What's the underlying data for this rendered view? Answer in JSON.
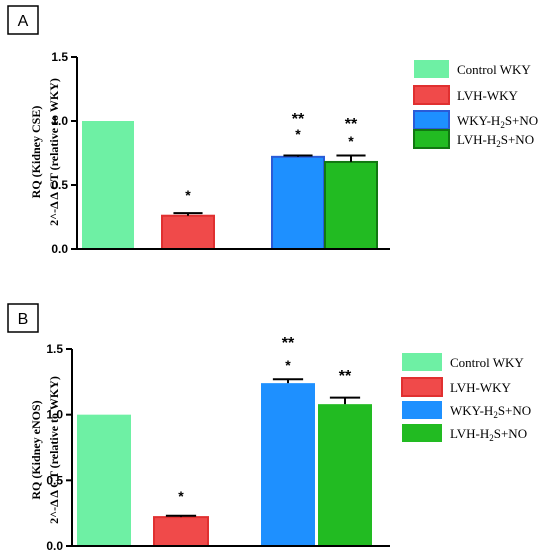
{
  "chart_data": [
    {
      "panel": "A",
      "type": "bar",
      "ylabel_line1": "RQ (Kidney CSE)",
      "ylabel_line2": "2^-Δ Δ CT (relative to WKY)",
      "ylim": [
        0,
        1.5
      ],
      "yticks": [
        "0.0",
        "0.5",
        "1.0",
        "1.5"
      ],
      "ytick_values": [
        0,
        0.5,
        1.0,
        1.5
      ],
      "legend_position": "right",
      "bars": [
        {
          "name": "Control WKY",
          "value": 1.0,
          "error": 0,
          "fill": "#6ef0a4",
          "stroke": "#6ef0a4",
          "sig_top": "",
          "sig_bottom": ""
        },
        {
          "name": "LVH-WKY",
          "value": 0.26,
          "error": 0.02,
          "fill": "#f04a4a",
          "stroke": "#e03030",
          "sig_top": "",
          "sig_bottom": "*"
        },
        {
          "name": "WKY-H2S+NO",
          "value": 0.72,
          "error": 0.01,
          "fill": "#1e90ff",
          "stroke": "#2a5bd7",
          "sig_top": "**",
          "sig_bottom": "*"
        },
        {
          "name": "LVH-H2S+NO",
          "value": 0.68,
          "error": 0.05,
          "fill": "#22bb22",
          "stroke": "#117711",
          "sig_top": "**",
          "sig_bottom": "*"
        }
      ],
      "legend": [
        {
          "label": "Control WKY",
          "sub": "",
          "label_rest": ""
        },
        {
          "label": "LVH-WKY",
          "sub": "",
          "label_rest": ""
        },
        {
          "label": "WKY-H",
          "sub": "2",
          "label_rest": "S+NO"
        },
        {
          "label": "LVH-H",
          "sub": "2",
          "label_rest": "S+NO"
        }
      ]
    },
    {
      "panel": "B",
      "type": "bar",
      "ylabel_line1": "RQ (Kidney eNOS)",
      "ylabel_line2": "2^-Δ Δ CT (relative to WKY)",
      "ylim": [
        0,
        1.5
      ],
      "yticks": [
        "0.0",
        "0.5",
        "1.0",
        "1.5"
      ],
      "ytick_values": [
        0,
        0.5,
        1.0,
        1.5
      ],
      "legend_position": "right",
      "bars": [
        {
          "name": "Control WKY",
          "value": 1.0,
          "error": 0,
          "fill": "#6ef0a4",
          "stroke": "#6ef0a4",
          "sig_top": "",
          "sig_bottom": ""
        },
        {
          "name": "LVH-WKY",
          "value": 0.22,
          "error": 0.01,
          "fill": "#f04a4a",
          "stroke": "#e03030",
          "sig_top": "",
          "sig_bottom": "*"
        },
        {
          "name": "WKY-H2S+NO",
          "value": 1.24,
          "error": 0.03,
          "fill": "#1e90ff",
          "stroke": "#1e90ff",
          "sig_top": "**",
          "sig_bottom": "*"
        },
        {
          "name": "LVH-H2S+NO",
          "value": 1.08,
          "error": 0.05,
          "fill": "#22bb22",
          "stroke": "#22bb22",
          "sig_top": "**",
          "sig_bottom": ""
        }
      ],
      "legend": [
        {
          "label": "Control WKY",
          "sub": "",
          "label_rest": ""
        },
        {
          "label": "LVH-WKY",
          "sub": "",
          "label_rest": ""
        },
        {
          "label": "WKY-H",
          "sub": "2",
          "label_rest": "S+NO"
        },
        {
          "label": "LVH-H",
          "sub": "2",
          "label_rest": "S+NO"
        }
      ]
    }
  ]
}
